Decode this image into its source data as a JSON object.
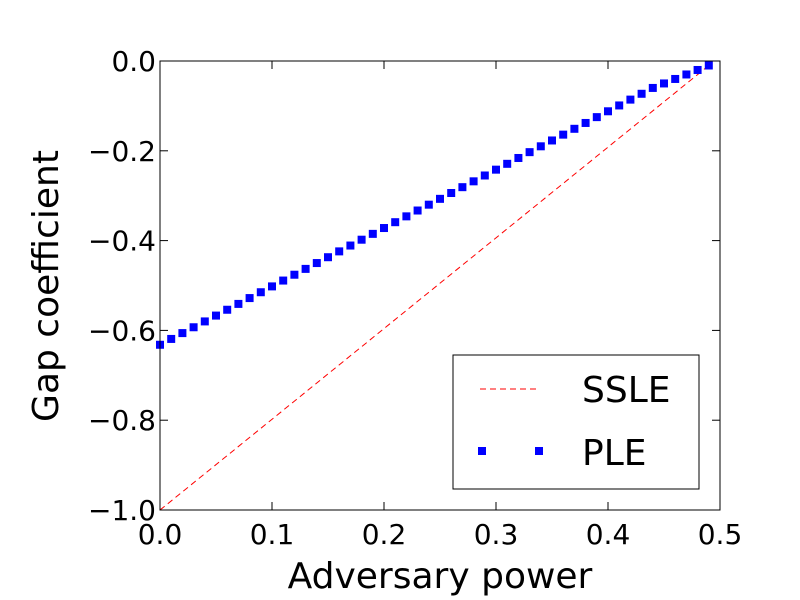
{
  "chart_data": {
    "type": "line",
    "xlabel": "Adversary power",
    "ylabel": "Gap coefficient",
    "xlim": [
      0.0,
      0.5
    ],
    "ylim": [
      -1.0,
      0.0
    ],
    "xticks": [
      "0.0",
      "0.1",
      "0.2",
      "0.3",
      "0.4",
      "0.5"
    ],
    "yticks": [
      "0.0",
      "−0.2",
      "−0.4",
      "−0.6",
      "−0.8",
      "−1.0"
    ],
    "grid": false,
    "legend_position": "bottom-right",
    "series": [
      {
        "name": "SSLE",
        "style": "dashed-line",
        "color": "#ff0000",
        "x": [
          0.0,
          0.49
        ],
        "y": [
          -1.0,
          -0.01
        ]
      },
      {
        "name": "PLE",
        "style": "square-markers",
        "color": "#0000ff",
        "x": [
          0.0,
          0.01,
          0.02,
          0.03,
          0.04,
          0.05,
          0.06,
          0.07,
          0.08,
          0.09,
          0.1,
          0.11,
          0.12,
          0.13,
          0.14,
          0.15,
          0.16,
          0.17,
          0.18,
          0.19,
          0.2,
          0.21,
          0.22,
          0.23,
          0.24,
          0.25,
          0.26,
          0.27,
          0.28,
          0.29,
          0.3,
          0.31,
          0.32,
          0.33,
          0.34,
          0.35,
          0.36,
          0.37,
          0.38,
          0.39,
          0.4,
          0.41,
          0.42,
          0.43,
          0.44,
          0.45,
          0.46,
          0.47,
          0.48,
          0.49
        ],
        "y": [
          -0.632,
          -0.619,
          -0.606,
          -0.593,
          -0.58,
          -0.567,
          -0.554,
          -0.541,
          -0.528,
          -0.515,
          -0.502,
          -0.489,
          -0.476,
          -0.463,
          -0.45,
          -0.437,
          -0.424,
          -0.411,
          -0.398,
          -0.385,
          -0.372,
          -0.359,
          -0.346,
          -0.333,
          -0.32,
          -0.307,
          -0.294,
          -0.281,
          -0.268,
          -0.255,
          -0.242,
          -0.229,
          -0.216,
          -0.203,
          -0.19,
          -0.177,
          -0.164,
          -0.151,
          -0.138,
          -0.125,
          -0.112,
          -0.099,
          -0.086,
          -0.073,
          -0.06,
          -0.05,
          -0.04,
          -0.03,
          -0.02,
          -0.01
        ]
      }
    ]
  }
}
